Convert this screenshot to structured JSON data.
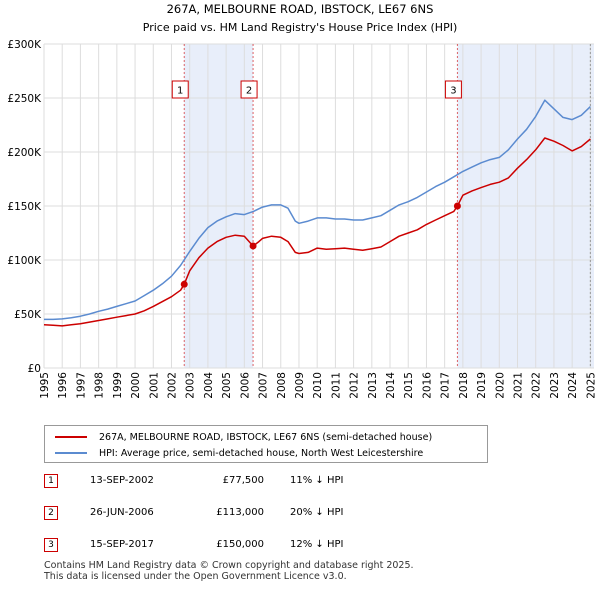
{
  "chart_data": {
    "type": "line",
    "title": "267A, MELBOURNE ROAD, IBSTOCK, LE67 6NS",
    "subtitle": "Price paid vs. HM Land Registry's House Price Index (HPI)",
    "x_ticks": [
      "1995",
      "1996",
      "1997",
      "1998",
      "1999",
      "2000",
      "2001",
      "2002",
      "2003",
      "2004",
      "2005",
      "2006",
      "2007",
      "2008",
      "2009",
      "2010",
      "2011",
      "2012",
      "2013",
      "2014",
      "2015",
      "2016",
      "2017",
      "2018",
      "2019",
      "2020",
      "2021",
      "2022",
      "2023",
      "2024",
      "2025"
    ],
    "y_ticks": [
      {
        "value": 0,
        "label": "£0"
      },
      {
        "value": 50000,
        "label": "£50K"
      },
      {
        "value": 100000,
        "label": "£100K"
      },
      {
        "value": 150000,
        "label": "£150K"
      },
      {
        "value": 200000,
        "label": "£200K"
      },
      {
        "value": 250000,
        "label": "£250K"
      },
      {
        "value": 300000,
        "label": "£300K"
      }
    ],
    "xlim": [
      1995,
      2025.2
    ],
    "ylim": [
      0,
      300000
    ],
    "shaded_ranges": [
      [
        2002.7,
        2006.48
      ],
      [
        2017.7,
        2025.2
      ]
    ],
    "series": [
      {
        "name": "267A, MELBOURNE ROAD, IBSTOCK, LE67 6NS (semi-detached house)",
        "color": "#cc0000",
        "x": [
          1995,
          1995.5,
          1996,
          1996.5,
          1997,
          1997.5,
          1998,
          1998.5,
          1999,
          1999.5,
          2000,
          2000.5,
          2001,
          2001.5,
          2002,
          2002.5,
          2002.7,
          2003,
          2003.5,
          2004,
          2004.5,
          2005,
          2005.5,
          2006,
          2006.48,
          2006.8,
          2007,
          2007.5,
          2008,
          2008.4,
          2008.8,
          2009,
          2009.5,
          2010,
          2010.5,
          2011,
          2011.5,
          2012,
          2012.5,
          2013,
          2013.5,
          2014,
          2014.5,
          2015,
          2015.5,
          2016,
          2016.5,
          2017,
          2017.5,
          2017.7,
          2018,
          2018.5,
          2019,
          2019.5,
          2020,
          2020.5,
          2021,
          2021.5,
          2022,
          2022.5,
          2023,
          2023.5,
          2024,
          2024.5,
          2025
        ],
        "values": [
          40000,
          39500,
          39000,
          40000,
          41000,
          42500,
          44000,
          45500,
          47000,
          48500,
          50000,
          53000,
          57000,
          61500,
          66000,
          72000,
          77500,
          90000,
          102000,
          111000,
          117000,
          121000,
          123000,
          122000,
          113000,
          117000,
          120000,
          122000,
          121000,
          117000,
          107000,
          106000,
          107000,
          111000,
          110000,
          110500,
          111000,
          110000,
          109000,
          110500,
          112000,
          117000,
          122000,
          125000,
          128000,
          133000,
          137000,
          141000,
          145000,
          150000,
          160000,
          164000,
          167000,
          170000,
          172000,
          176000,
          185000,
          193000,
          202000,
          213000,
          210000,
          206000,
          201000,
          205000,
          212000
        ]
      },
      {
        "name": "HPI: Average price, semi-detached house, North West Leicestershire",
        "color": "#5b8bd0",
        "x": [
          1995,
          1995.5,
          1996,
          1996.5,
          1997,
          1997.5,
          1998,
          1998.5,
          1999,
          1999.5,
          2000,
          2000.5,
          2001,
          2001.5,
          2002,
          2002.5,
          2003,
          2003.5,
          2004,
          2004.5,
          2005,
          2005.5,
          2006,
          2006.5,
          2007,
          2007.5,
          2008,
          2008.4,
          2008.8,
          2009,
          2009.5,
          2010,
          2010.5,
          2011,
          2011.5,
          2012,
          2012.5,
          2013,
          2013.5,
          2014,
          2014.5,
          2015,
          2015.5,
          2016,
          2016.5,
          2017,
          2017.5,
          2018,
          2018.5,
          2019,
          2019.5,
          2020,
          2020.5,
          2021,
          2021.5,
          2022,
          2022.5,
          2023,
          2023.5,
          2024,
          2024.5,
          2025
        ],
        "values": [
          45000,
          45000,
          45500,
          46500,
          48000,
          50000,
          52500,
          54500,
          57000,
          59500,
          62000,
          67000,
          72000,
          78000,
          85000,
          95000,
          108000,
          120000,
          130000,
          136000,
          140000,
          143000,
          142000,
          145000,
          149000,
          151000,
          151000,
          148000,
          136000,
          134000,
          136000,
          139000,
          139000,
          138000,
          138000,
          137000,
          137000,
          139000,
          141000,
          146000,
          151000,
          154000,
          158000,
          163000,
          168000,
          172000,
          177000,
          182000,
          186000,
          190000,
          193000,
          195000,
          202000,
          212000,
          221000,
          233000,
          248000,
          240000,
          232000,
          230000,
          234000,
          242000
        ]
      }
    ],
    "markers": [
      {
        "label": "1",
        "x": 2002.7,
        "y": 77500
      },
      {
        "label": "2",
        "x": 2006.48,
        "y": 113000
      },
      {
        "label": "3",
        "x": 2017.7,
        "y": 150000
      }
    ]
  },
  "legend": {
    "red_label": "267A, MELBOURNE ROAD, IBSTOCK, LE67 6NS (semi-detached house)",
    "blue_label": "HPI: Average price, semi-detached house, North West Leicestershire"
  },
  "transactions": [
    {
      "num": "1",
      "date": "13-SEP-2002",
      "price": "£77,500",
      "hpi": "11% ↓ HPI"
    },
    {
      "num": "2",
      "date": "26-JUN-2006",
      "price": "£113,000",
      "hpi": "20% ↓ HPI"
    },
    {
      "num": "3",
      "date": "15-SEP-2017",
      "price": "£150,000",
      "hpi": "12% ↓ HPI"
    }
  ],
  "footer": {
    "line1": "Contains HM Land Registry data © Crown copyright and database right 2025.",
    "line2": "This data is licensed under the Open Government Licence v3.0."
  }
}
